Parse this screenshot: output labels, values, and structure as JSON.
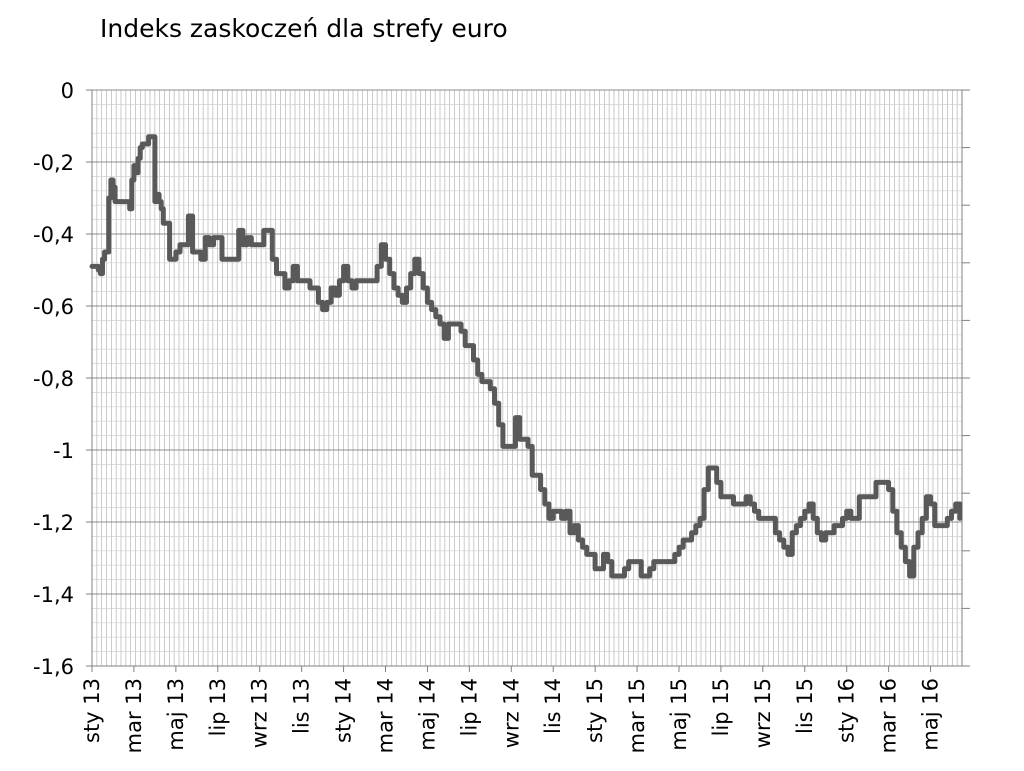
{
  "chart_data": {
    "type": "line",
    "title": "Indeks zaskoczeń dla strefy euro",
    "xlabel": "",
    "ylabel": "",
    "ylim": [
      -1.6,
      0
    ],
    "y_ticks": [
      0,
      -0.2,
      -0.4,
      -0.6,
      -0.8,
      -1,
      -1.2,
      -1.4,
      -1.6
    ],
    "y_tick_labels": [
      "0",
      "-0,2",
      "-0,4",
      "-0,6",
      "-0,8",
      "-1",
      "-1,2",
      "-1,4",
      "-1,6"
    ],
    "x_tick_labels": [
      "sty 13",
      "mar 13",
      "maj 13",
      "lip 13",
      "wrz 13",
      "lis 13",
      "sty 14",
      "mar 14",
      "maj 14",
      "lip 14",
      "wrz 14",
      "lis 14",
      "sty 15",
      "mar 15",
      "maj 15",
      "lip 15",
      "wrz 15",
      "lis 15",
      "sty 16",
      "mar 16",
      "maj 16"
    ],
    "x_range_months": [
      0,
      41.5
    ],
    "grid": true,
    "legend": "none",
    "line_color": "#595959",
    "series": [
      {
        "x": [
          0,
          0.1,
          0.2,
          0.3,
          0.4,
          0.5,
          0.6,
          0.7,
          0.8,
          0.9,
          1.0,
          1.1,
          1.2,
          1.3,
          1.4,
          1.5,
          1.6,
          1.7,
          1.8,
          1.9,
          2.0,
          2.1,
          2.2,
          2.3,
          2.4,
          2.5,
          2.6,
          2.7,
          2.8,
          2.9,
          3.0,
          3.1,
          3.2,
          3.3,
          3.4,
          3.5,
          3.6,
          3.7,
          3.8,
          3.9,
          4.0,
          4.2,
          4.4,
          4.6,
          4.8,
          5.0,
          5.2,
          5.4,
          5.6,
          5.8,
          6.0,
          6.2,
          6.4,
          6.6,
          6.8,
          7.0,
          7.2,
          7.4,
          7.6,
          7.8,
          8.0,
          8.2,
          8.4,
          8.6,
          8.8,
          9.0,
          9.2,
          9.4,
          9.6,
          9.8,
          10.0,
          10.2,
          10.4,
          10.6,
          10.8,
          11.0,
          11.2,
          11.4,
          11.6,
          11.8,
          12.0,
          12.2,
          12.4,
          12.6,
          12.8,
          13.0,
          13.2,
          13.4,
          13.6,
          13.8,
          14.0,
          14.2,
          14.4,
          14.6,
          14.8,
          15.0,
          15.2,
          15.4,
          15.6,
          15.8,
          16.0,
          16.2,
          16.4,
          16.6,
          16.8,
          17.0,
          17.2,
          17.4,
          17.6,
          17.8,
          18.0,
          18.2,
          18.4,
          18.6,
          18.8,
          19.0,
          19.2,
          19.4,
          19.6,
          19.8,
          20.0,
          20.2,
          20.4,
          20.6,
          20.8,
          21.0,
          21.2,
          21.4,
          21.6,
          21.8,
          22.0,
          22.2,
          22.4,
          22.6,
          22.8,
          23.0,
          23.2,
          23.4,
          23.6,
          23.8,
          24.0,
          24.2,
          24.4,
          24.6,
          24.8,
          25.0,
          25.2,
          25.4,
          25.6,
          25.8,
          26.0,
          26.2,
          26.4,
          26.6,
          26.8,
          27.0,
          27.2,
          27.4,
          27.6,
          27.8,
          28.0,
          28.2,
          28.4,
          28.6,
          28.8,
          29.0,
          29.2,
          29.4,
          29.6,
          29.8,
          30.0,
          30.2,
          30.4,
          30.6,
          30.8,
          31.0,
          31.2,
          31.4,
          31.6,
          31.8,
          32.0,
          32.2,
          32.4,
          32.6,
          32.8,
          33.0,
          33.2,
          33.4,
          33.6,
          33.8,
          34.0,
          34.2,
          34.4,
          34.6,
          34.8,
          35.0,
          35.2,
          35.4,
          35.6,
          35.8,
          36.0,
          36.2,
          36.4,
          36.6,
          36.8,
          37.0,
          37.2,
          37.4,
          37.6,
          37.8,
          38.0,
          38.2,
          38.4,
          38.6,
          38.8,
          39.0,
          39.2,
          39.4,
          39.6,
          39.8,
          40.0,
          40.2,
          40.4,
          40.6,
          40.8,
          41.0,
          41.2,
          41.4
        ],
        "values": [
          -0.49,
          -0.49,
          -0.49,
          -0.5,
          -0.51,
          -0.47,
          -0.45,
          -0.45,
          -0.3,
          -0.25,
          -0.27,
          -0.31,
          -0.31,
          -0.31,
          -0.31,
          -0.31,
          -0.31,
          -0.31,
          -0.33,
          -0.25,
          -0.21,
          -0.23,
          -0.19,
          -0.16,
          -0.15,
          -0.15,
          -0.15,
          -0.13,
          -0.13,
          -0.13,
          -0.31,
          -0.29,
          -0.31,
          -0.33,
          -0.37,
          -0.37,
          -0.37,
          -0.47,
          -0.47,
          -0.47,
          -0.45,
          -0.43,
          -0.43,
          -0.35,
          -0.45,
          -0.45,
          -0.47,
          -0.41,
          -0.43,
          -0.41,
          -0.41,
          -0.47,
          -0.47,
          -0.47,
          -0.47,
          -0.39,
          -0.43,
          -0.41,
          -0.43,
          -0.43,
          -0.43,
          -0.39,
          -0.39,
          -0.47,
          -0.51,
          -0.51,
          -0.55,
          -0.53,
          -0.49,
          -0.53,
          -0.53,
          -0.53,
          -0.55,
          -0.55,
          -0.59,
          -0.61,
          -0.59,
          -0.55,
          -0.57,
          -0.53,
          -0.49,
          -0.53,
          -0.55,
          -0.53,
          -0.53,
          -0.53,
          -0.53,
          -0.53,
          -0.49,
          -0.43,
          -0.47,
          -0.51,
          -0.55,
          -0.57,
          -0.59,
          -0.55,
          -0.51,
          -0.47,
          -0.51,
          -0.55,
          -0.59,
          -0.61,
          -0.63,
          -0.65,
          -0.69,
          -0.65,
          -0.65,
          -0.65,
          -0.67,
          -0.71,
          -0.71,
          -0.75,
          -0.79,
          -0.81,
          -0.81,
          -0.83,
          -0.87,
          -0.93,
          -0.99,
          -0.99,
          -0.99,
          -0.91,
          -0.97,
          -0.97,
          -0.99,
          -1.07,
          -1.07,
          -1.11,
          -1.15,
          -1.19,
          -1.17,
          -1.17,
          -1.19,
          -1.17,
          -1.23,
          -1.21,
          -1.25,
          -1.27,
          -1.29,
          -1.29,
          -1.33,
          -1.33,
          -1.29,
          -1.31,
          -1.35,
          -1.35,
          -1.35,
          -1.33,
          -1.31,
          -1.31,
          -1.31,
          -1.35,
          -1.35,
          -1.33,
          -1.31,
          -1.31,
          -1.31,
          -1.31,
          -1.31,
          -1.29,
          -1.27,
          -1.25,
          -1.25,
          -1.23,
          -1.21,
          -1.19,
          -1.11,
          -1.05,
          -1.05,
          -1.09,
          -1.13,
          -1.13,
          -1.13,
          -1.15,
          -1.15,
          -1.15,
          -1.13,
          -1.15,
          -1.17,
          -1.19,
          -1.19,
          -1.19,
          -1.19,
          -1.23,
          -1.25,
          -1.27,
          -1.29,
          -1.23,
          -1.21,
          -1.19,
          -1.17,
          -1.15,
          -1.19,
          -1.23,
          -1.25,
          -1.23,
          -1.23,
          -1.21,
          -1.21,
          -1.19,
          -1.17,
          -1.19,
          -1.19,
          -1.13,
          -1.13,
          -1.13,
          -1.13,
          -1.09,
          -1.09,
          -1.09,
          -1.11,
          -1.17,
          -1.23,
          -1.27,
          -1.31,
          -1.35,
          -1.27,
          -1.23,
          -1.19,
          -1.13,
          -1.15,
          -1.21,
          -1.21,
          -1.21,
          -1.19,
          -1.17,
          -1.15,
          -1.19
        ]
      }
    ]
  }
}
